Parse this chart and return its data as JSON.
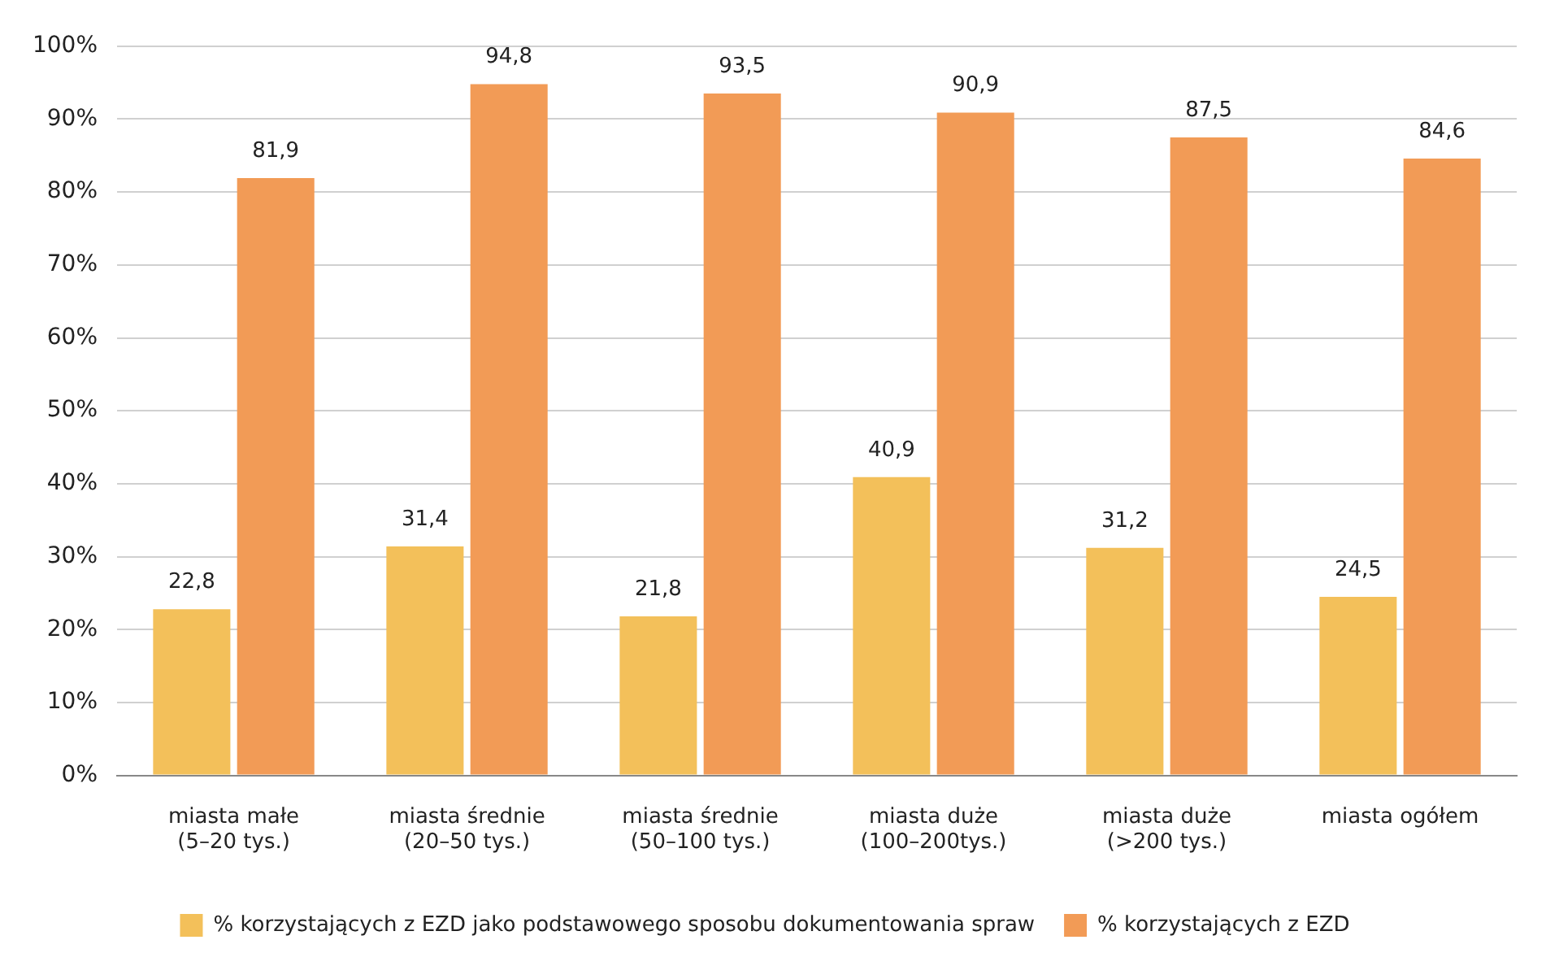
{
  "chart_data": {
    "type": "bar",
    "categories": [
      "miasta małe\n(5–20 tys.)",
      "miasta średnie\n(20–50 tys.)",
      "miasta średnie\n(50–100 tys.)",
      "miasta duże\n(100–200tys.)",
      "miasta duże\n(>200 tys.)",
      "miasta ogółem"
    ],
    "series": [
      {
        "name": "% korzystających z EZD jako podstawowego sposobu dokumentowania spraw",
        "color": "#f3c05a",
        "values": [
          22.8,
          31.4,
          21.8,
          40.9,
          31.2,
          24.5
        ],
        "value_labels": [
          "22,8",
          "31,4",
          "21,8",
          "40,9",
          "31,2",
          "24,5"
        ]
      },
      {
        "name": "% korzystających z EZD",
        "color": "#f29b56",
        "values": [
          81.9,
          94.8,
          93.5,
          90.9,
          87.5,
          84.6
        ],
        "value_labels": [
          "81,9",
          "94,8",
          "93,5",
          "90,9",
          "87,5",
          "84,6"
        ]
      }
    ],
    "ylim": [
      0,
      100
    ],
    "yticks": [
      {
        "value": 0,
        "label": "0%"
      },
      {
        "value": 10,
        "label": "10%"
      },
      {
        "value": 20,
        "label": "20%"
      },
      {
        "value": 30,
        "label": "30%"
      },
      {
        "value": 40,
        "label": "40%"
      },
      {
        "value": 50,
        "label": "50%"
      },
      {
        "value": 60,
        "label": "60%"
      },
      {
        "value": 70,
        "label": "70%"
      },
      {
        "value": 80,
        "label": "80%"
      },
      {
        "value": 90,
        "label": "90%"
      },
      {
        "value": 100,
        "label": "100%"
      }
    ],
    "grid": "y",
    "legend": "bottom"
  }
}
